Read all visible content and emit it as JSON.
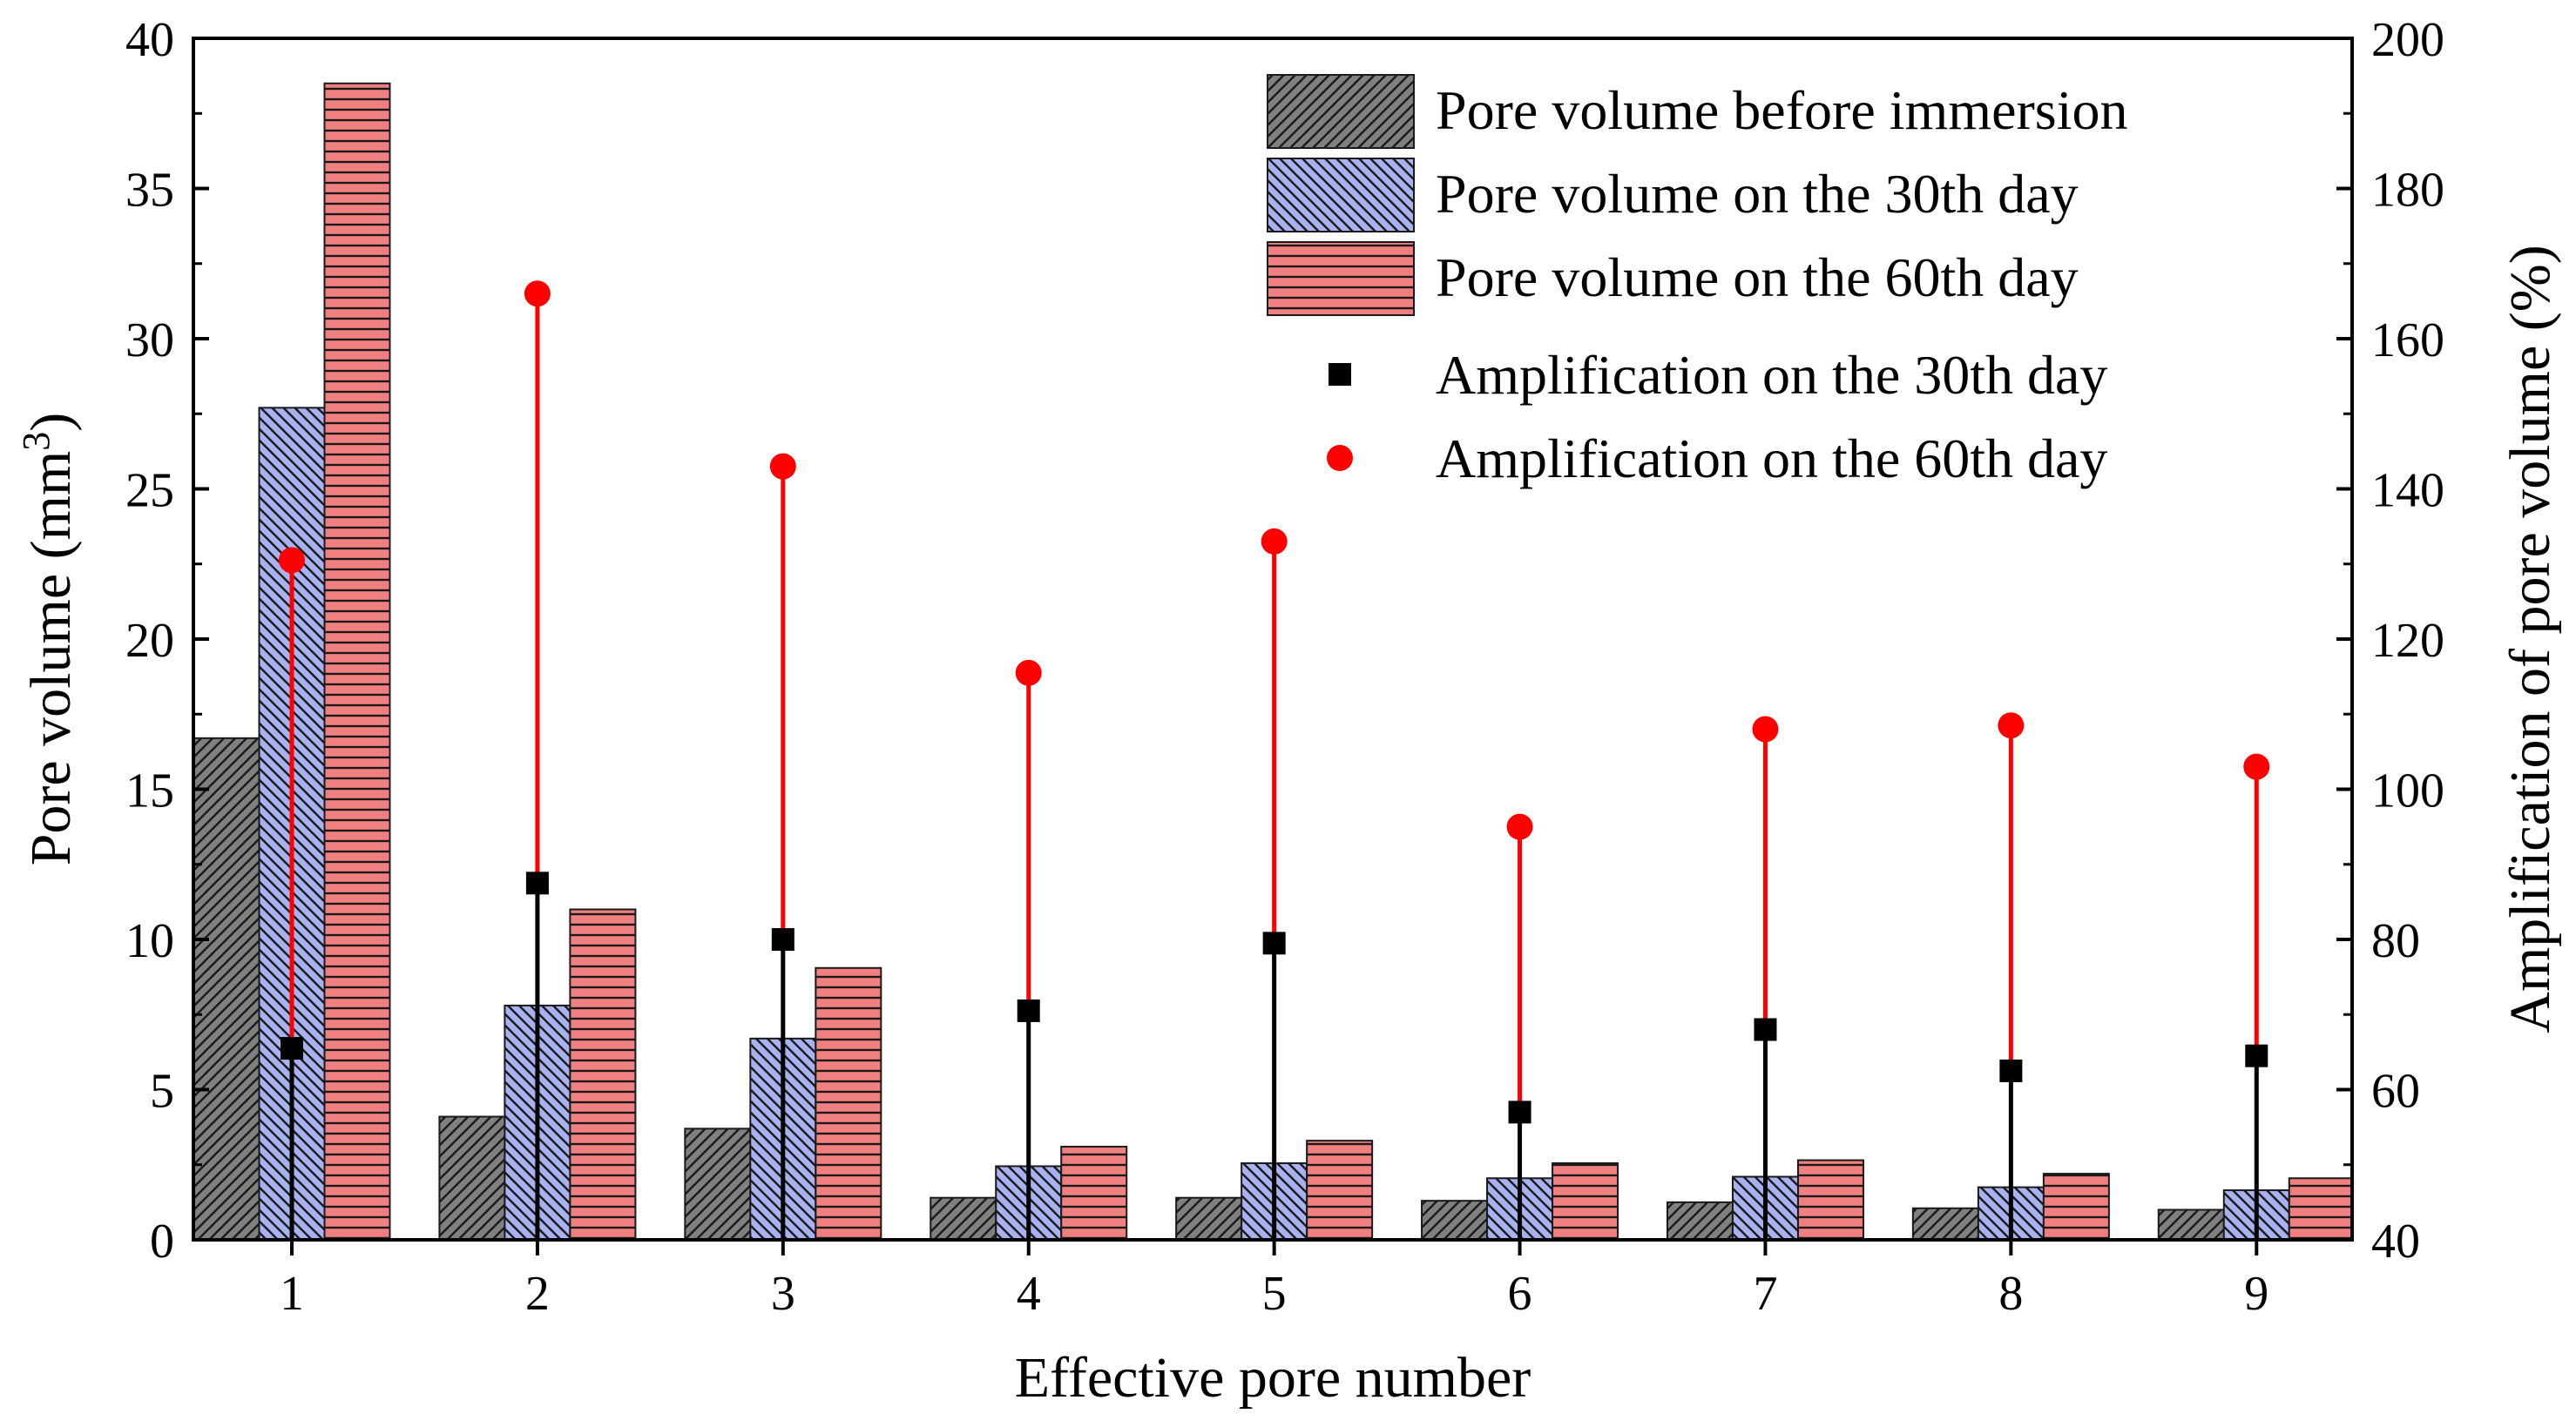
{
  "chart_data": {
    "type": "bar",
    "xlabel": "Effective pore number",
    "ylabel_main": "Pore volume (mm",
    "ylabel_sup": "3",
    "ylabel_end": ")",
    "ylabel_right": "Amplification of pore volume (%)",
    "categories": [
      "1",
      "2",
      "3",
      "4",
      "5",
      "6",
      "7",
      "8",
      "9"
    ],
    "ylim": [
      0,
      40
    ],
    "yticks": [
      0,
      5,
      10,
      15,
      20,
      25,
      30,
      35,
      40
    ],
    "ylim_right": [
      40,
      200
    ],
    "yticks_right": [
      40,
      60,
      80,
      100,
      120,
      140,
      160,
      180,
      200
    ],
    "bar_series": [
      {
        "name": "Pore volume before immersion",
        "color": "#808080",
        "pattern": "diag-left",
        "values": [
          16.7,
          4.1,
          3.7,
          1.4,
          1.4,
          1.3,
          1.25,
          1.05,
          1.0
        ]
      },
      {
        "name": "Pore volume on the 30th day",
        "color": "#a9b2f0",
        "pattern": "diag-right",
        "values": [
          27.7,
          7.8,
          6.7,
          2.45,
          2.55,
          2.05,
          2.1,
          1.75,
          1.65
        ]
      },
      {
        "name": "Pore volume on the 60th day",
        "color": "#f08080",
        "pattern": "horizontal",
        "values": [
          38.5,
          11.0,
          9.05,
          3.1,
          3.3,
          2.55,
          2.65,
          2.2,
          2.05
        ]
      }
    ],
    "point_series": [
      {
        "name": "Amplification on the 30th day",
        "marker": "square",
        "color": "#000000",
        "values": [
          65.5,
          87.5,
          80.0,
          70.5,
          79.5,
          57.0,
          68.0,
          62.5,
          64.5
        ]
      },
      {
        "name": "Amplification on the 60th day",
        "marker": "circle",
        "color": "#ff0000",
        "values": [
          130.5,
          166.0,
          143.0,
          115.5,
          133.0,
          95.0,
          108.0,
          108.5,
          103.0
        ]
      }
    ],
    "legend_position": "top-right"
  }
}
